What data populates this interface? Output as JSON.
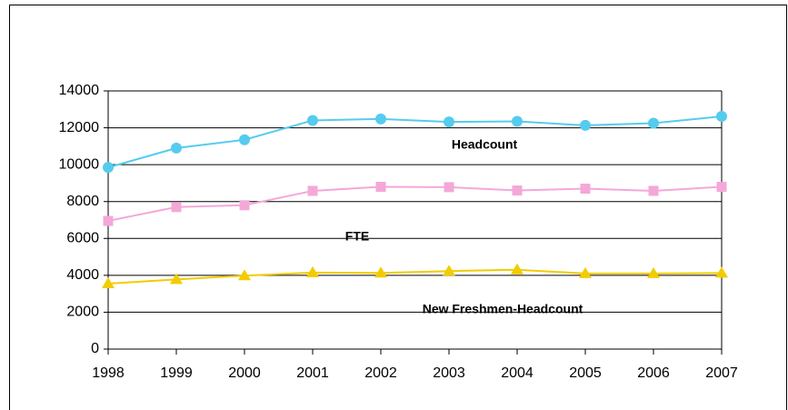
{
  "chart_data": {
    "type": "line",
    "categories": [
      "1998",
      "1999",
      "2000",
      "2001",
      "2002",
      "2003",
      "2004",
      "2005",
      "2006",
      "2007"
    ],
    "series": [
      {
        "name": "Headcount",
        "color": "#55ccee",
        "marker": "circle",
        "values": [
          9850,
          10900,
          11350,
          12400,
          12480,
          12320,
          12350,
          12130,
          12250,
          12620
        ]
      },
      {
        "name": "FTE",
        "color": "#f4a8d8",
        "marker": "square",
        "values": [
          6950,
          7700,
          7800,
          8580,
          8800,
          8780,
          8600,
          8700,
          8580,
          8800
        ]
      },
      {
        "name": "New Freshmen-Headcount",
        "color": "#f2cc00",
        "marker": "triangle",
        "values": [
          3550,
          3780,
          3980,
          4150,
          4130,
          4230,
          4300,
          4100,
          4100,
          4120
        ]
      }
    ],
    "ylim": [
      0,
      14000
    ],
    "yticks": [
      0,
      2000,
      4000,
      6000,
      8000,
      10000,
      12000,
      14000
    ],
    "grid": true
  }
}
